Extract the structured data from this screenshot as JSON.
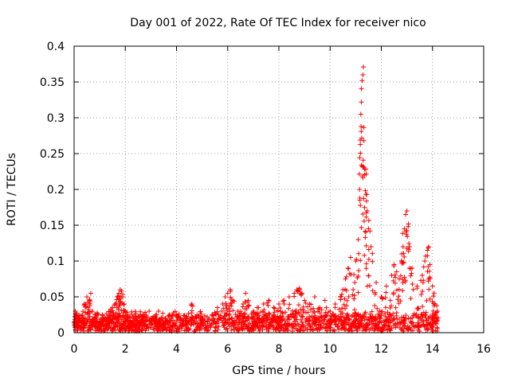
{
  "chart_data": {
    "type": "scatter",
    "title": "Day 001 of 2022, Rate Of TEC Index for receiver nico",
    "xlabel": "GPS time / hours",
    "ylabel": "ROTI / TECUs",
    "xlim": [
      0,
      16
    ],
    "ylim": [
      0,
      0.4
    ],
    "grid": true,
    "marker": "+",
    "color": "#ff0000",
    "x_ticks": [
      0,
      2,
      4,
      6,
      8,
      10,
      12,
      14,
      16
    ],
    "x_tick_labels": [
      "0",
      "2",
      "4",
      "6",
      "8",
      "10",
      "12",
      "14",
      "16"
    ],
    "y_ticks": [
      0,
      0.05,
      0.1,
      0.15,
      0.2,
      0.25,
      0.3,
      0.35,
      0.4
    ],
    "y_tick_labels": [
      "0",
      "0.05",
      "0.1",
      "0.15",
      "0.2",
      "0.25",
      "0.3",
      "0.35",
      "0.4"
    ],
    "series": [
      {
        "name": "ROTI",
        "x": [
          0.05,
          0.1,
          0.2,
          0.3,
          0.4,
          0.5,
          0.6,
          0.65,
          0.7,
          0.8,
          0.9,
          1.0,
          1.1,
          1.2,
          1.3,
          1.4,
          1.5,
          1.6,
          1.7,
          1.75,
          1.8,
          1.85,
          1.9,
          1.95,
          2.0,
          2.1,
          2.2,
          2.4,
          2.6,
          2.8,
          3.0,
          3.2,
          3.3,
          3.4,
          3.6,
          3.8,
          4.0,
          4.2,
          4.4,
          4.6,
          4.8,
          5.0,
          5.2,
          5.4,
          5.6,
          5.8,
          5.9,
          6.0,
          6.1,
          6.2,
          6.4,
          6.6,
          6.7,
          6.8,
          7.0,
          7.2,
          7.4,
          7.6,
          7.8,
          8.0,
          8.2,
          8.4,
          8.6,
          8.7,
          8.8,
          8.9,
          9.0,
          9.2,
          9.4,
          9.6,
          9.8,
          10.0,
          10.2,
          10.4,
          10.5,
          10.6,
          10.7,
          10.8,
          10.9,
          11.0,
          11.1,
          11.15,
          11.2,
          11.22,
          11.25,
          11.28,
          11.3,
          11.32,
          11.35,
          11.38,
          11.4,
          11.45,
          11.5,
          11.6,
          11.8,
          12.0,
          12.2,
          12.4,
          12.5,
          12.6,
          12.7,
          12.8,
          12.85,
          12.9,
          12.95,
          13.0,
          13.05,
          13.1,
          13.2,
          13.4,
          13.6,
          13.7,
          13.8,
          13.85,
          13.9,
          14.0,
          14.1,
          14.2
        ],
        "y": [
          0.03,
          0.025,
          0.02,
          0.015,
          0.04,
          0.05,
          0.045,
          0.055,
          0.03,
          0.02,
          0.015,
          0.018,
          0.025,
          0.02,
          0.022,
          0.03,
          0.035,
          0.04,
          0.05,
          0.055,
          0.06,
          0.058,
          0.05,
          0.04,
          0.03,
          0.02,
          0.015,
          0.012,
          0.015,
          0.018,
          0.02,
          0.025,
          0.03,
          0.02,
          0.015,
          0.02,
          0.025,
          0.018,
          0.02,
          0.04,
          0.025,
          0.02,
          0.015,
          0.025,
          0.035,
          0.04,
          0.05,
          0.055,
          0.06,
          0.045,
          0.03,
          0.04,
          0.055,
          0.045,
          0.03,
          0.035,
          0.04,
          0.045,
          0.035,
          0.04,
          0.045,
          0.05,
          0.055,
          0.06,
          0.062,
          0.055,
          0.045,
          0.04,
          0.05,
          0.035,
          0.045,
          0.03,
          0.04,
          0.05,
          0.06,
          0.075,
          0.09,
          0.105,
          0.06,
          0.1,
          0.13,
          0.2,
          0.305,
          0.322,
          0.352,
          0.36,
          0.371,
          0.268,
          0.228,
          0.198,
          0.193,
          0.17,
          0.145,
          0.12,
          0.07,
          0.05,
          0.065,
          0.08,
          0.095,
          0.085,
          0.075,
          0.11,
          0.12,
          0.145,
          0.165,
          0.17,
          0.148,
          0.12,
          0.09,
          0.065,
          0.08,
          0.1,
          0.115,
          0.12,
          0.095,
          0.065,
          0.04,
          0.03
        ]
      }
    ],
    "noise_band_bottom": [
      0,
      0.018
    ],
    "noise_extent_x": [
      0,
      14.2
    ]
  }
}
